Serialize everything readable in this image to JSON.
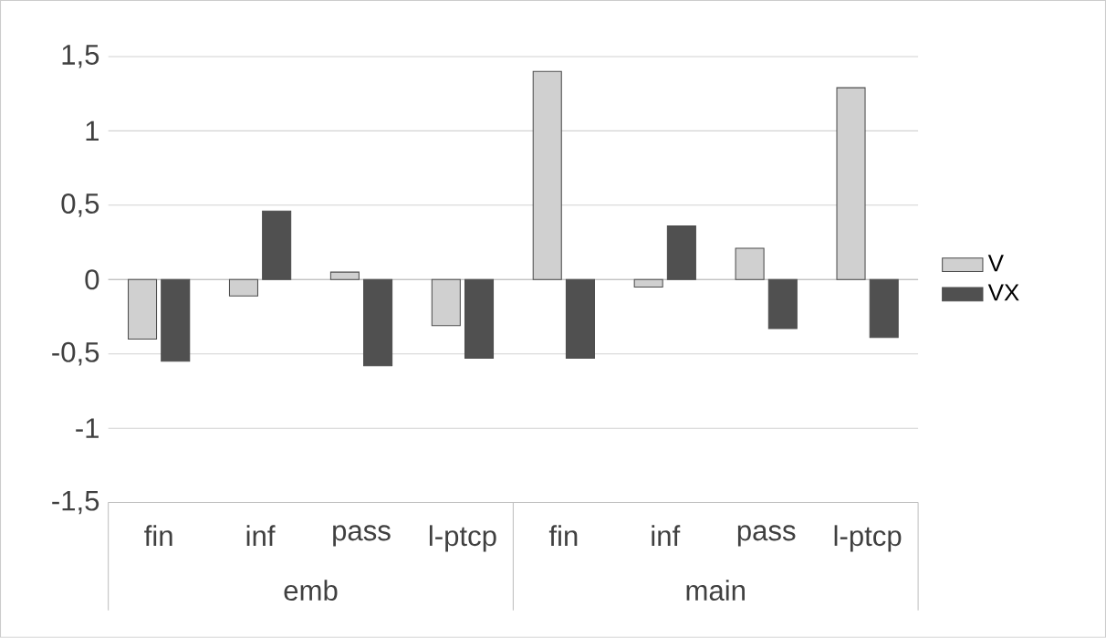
{
  "chart_data": {
    "type": "bar",
    "categories": [
      "fin",
      "inf",
      "pass",
      "l-ptcp",
      "fin",
      "inf",
      "pass",
      "l-ptcp"
    ],
    "series": [
      {
        "name": "V",
        "color": "#d0d0d0",
        "values": [
          -0.4,
          -0.11,
          0.05,
          -0.31,
          1.4,
          -0.05,
          0.21,
          1.29
        ]
      },
      {
        "name": "VX",
        "color": "#505050",
        "values": [
          -0.55,
          0.46,
          -0.58,
          -0.53,
          -0.53,
          0.36,
          -0.33,
          -0.39
        ]
      }
    ],
    "ylim": [
      -1.5,
      1.5
    ],
    "yticks": [
      {
        "value": -1.5,
        "label": "-1,5"
      },
      -1,
      {
        "value": -0.5,
        "label": "-0,5"
      },
      0,
      {
        "value": 0.5,
        "label": "0,5"
      },
      1,
      {
        "value": 1.5,
        "label": "1,5"
      }
    ],
    "annotations": [
      "emb",
      "main"
    ],
    "grid": "y",
    "legend": "right"
  }
}
